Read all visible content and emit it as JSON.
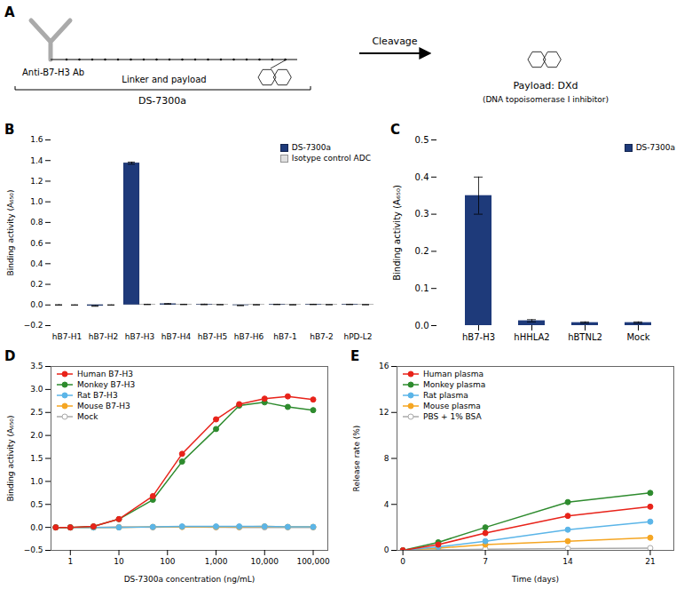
{
  "chart_data": [
    {
      "type": "diagram",
      "title": "A",
      "annotations": [
        "Anti-B7-H3 Ab",
        "Linker and payload",
        "DS-7300a",
        "Cleavage",
        "Payload: DXd",
        "(DNA topoisomerase I inhibitor)"
      ]
    },
    {
      "type": "bar",
      "title": "B",
      "categories": [
        "hB7-H1",
        "hB7-H2",
        "hB7-H3",
        "hB7-H4",
        "hB7-H5",
        "hB7-H6",
        "hB7-1",
        "hB7-2",
        "hPD-L2"
      ],
      "series": [
        {
          "name": "DS-7300a",
          "color": "#1e3a7a",
          "values": [
            0.0,
            -0.01,
            1.375,
            0.01,
            0.005,
            -0.005,
            0.005,
            0.005,
            0.005
          ],
          "errors": [
            0.003,
            0.003,
            0.01,
            0.003,
            0.003,
            0.002,
            0.002,
            0.002,
            0.002
          ]
        },
        {
          "name": "Isotype control ADC",
          "color": "#e0e0e0",
          "values": [
            0.0,
            0.0,
            0.005,
            0.005,
            0.003,
            0.002,
            0.002,
            0.003,
            0.003
          ],
          "errors": [
            0.001,
            0.001,
            0.002,
            0.002,
            0.001,
            0.001,
            0.001,
            0.001,
            0.001
          ]
        }
      ],
      "ylabel": "Binding activity (A₆₅₀)",
      "ylim": [
        -0.2,
        1.6
      ],
      "yticks": [
        {
          "value": -0.2,
          "label": "−0.2"
        },
        {
          "value": 0.0,
          "label": "0.0"
        },
        0.2,
        0.4,
        0.6,
        0.8,
        {
          "value": 1.0,
          "label": "1.0"
        },
        1.2,
        1.4,
        1.6
      ],
      "legend": "upper right",
      "grid": false
    },
    {
      "type": "bar",
      "title": "C",
      "categories": [
        "hB7-H3",
        "hHHLA2",
        "hBTNL2",
        "Mock"
      ],
      "series": [
        {
          "name": "DS-7300a",
          "color": "#1e3a7a",
          "values": [
            0.35,
            0.013,
            0.008,
            0.008
          ],
          "errors": [
            0.05,
            0.003,
            0.002,
            0.002
          ]
        }
      ],
      "ylabel": "Binding activity (A₆₅₀)",
      "ylim": [
        0.0,
        0.5
      ],
      "yticks": [
        {
          "value": 0.0,
          "label": "0.0"
        },
        0.1,
        0.2,
        0.3,
        0.4,
        0.5
      ],
      "legend": "upper right",
      "grid": false
    },
    {
      "type": "line",
      "title": "D",
      "x": [
        0.5,
        1,
        3,
        10,
        50,
        200,
        1000,
        3000,
        10000,
        30000,
        100000
      ],
      "series": [
        {
          "name": "Human B7-H3",
          "color": "#e8231a",
          "marker": "circle",
          "values": [
            0.0,
            0.0,
            0.02,
            0.18,
            0.68,
            1.6,
            2.35,
            2.68,
            2.8,
            2.85,
            2.78
          ]
        },
        {
          "name": "Monkey B7-H3",
          "color": "#2e8b2e",
          "marker": "circle",
          "values": [
            0.0,
            0.0,
            0.02,
            0.18,
            0.6,
            1.43,
            2.14,
            2.65,
            2.72,
            2.62,
            2.55
          ]
        },
        {
          "name": "Rat B7-H3",
          "color": "#5bb5e8",
          "marker": "circle",
          "values": [
            0.0,
            0.0,
            0.0,
            0.0,
            0.01,
            0.02,
            0.02,
            0.02,
            0.02,
            0.01,
            0.01
          ]
        },
        {
          "name": "Mouse B7-H3",
          "color": "#f5a623",
          "marker": "circle",
          "values": [
            0.0,
            0.0,
            0.0,
            0.0,
            0.01,
            0.01,
            0.01,
            0.01,
            0.02,
            0.01,
            0.01
          ]
        },
        {
          "name": "Mock",
          "color": "#aaaaaa",
          "marker": "open_circle",
          "values": [
            0.0,
            0.0,
            0.0,
            0.01,
            0.0,
            0.01,
            0.0,
            0.0,
            0.0,
            0.0,
            0.0
          ]
        }
      ],
      "xlabel": "DS-7300a concentration (ng/mL)",
      "ylabel": "Binding activity (A₆₅₀)",
      "log": "x",
      "xlim": [
        0.4,
        200000
      ],
      "xticks": [
        1,
        10,
        100,
        {
          "value": 1000,
          "label": "1,000"
        },
        {
          "value": 10000,
          "label": "10,000"
        },
        {
          "value": 100000,
          "label": "100,000"
        }
      ],
      "ylim": [
        -0.5,
        3.5
      ],
      "yticks": [
        {
          "value": -0.5,
          "label": "−0.5"
        },
        {
          "value": 0.0,
          "label": "0.0"
        },
        0.5,
        {
          "value": 1.0,
          "label": "1.0"
        },
        1.5,
        {
          "value": 2.0,
          "label": "2.0"
        },
        2.5,
        {
          "value": 3.0,
          "label": "3.0"
        },
        3.5
      ],
      "legend": "upper left",
      "grid": false
    },
    {
      "type": "line",
      "title": "E",
      "x": [
        0,
        3,
        7,
        14,
        21
      ],
      "series": [
        {
          "name": "Human plasma",
          "color": "#e8231a",
          "marker": "circle",
          "values": [
            0.0,
            0.5,
            1.5,
            3.0,
            3.8
          ]
        },
        {
          "name": "Monkey plasma",
          "color": "#2e8b2e",
          "marker": "circle",
          "values": [
            0.0,
            0.7,
            2.0,
            4.2,
            5.0
          ]
        },
        {
          "name": "Rat plasma",
          "color": "#5bb5e8",
          "marker": "circle",
          "values": [
            0.0,
            0.3,
            0.8,
            1.8,
            2.5
          ]
        },
        {
          "name": "Mouse plasma",
          "color": "#f5a623",
          "marker": "circle",
          "values": [
            0.0,
            0.2,
            0.5,
            0.8,
            1.1
          ]
        },
        {
          "name": "PBS + 1% BSA",
          "color": "#aaaaaa",
          "marker": "open_circle",
          "values": [
            0.0,
            0.05,
            0.1,
            0.15,
            0.2
          ]
        }
      ],
      "xlabel": "Time (days)",
      "ylabel": "Release rate (%)",
      "xlim": [
        -0.5,
        23
      ],
      "xticks": [
        0,
        7,
        14,
        21
      ],
      "ylim": [
        0,
        16
      ],
      "yticks": [
        0,
        4,
        8,
        12,
        16
      ],
      "legend": "upper left",
      "grid": false
    }
  ]
}
